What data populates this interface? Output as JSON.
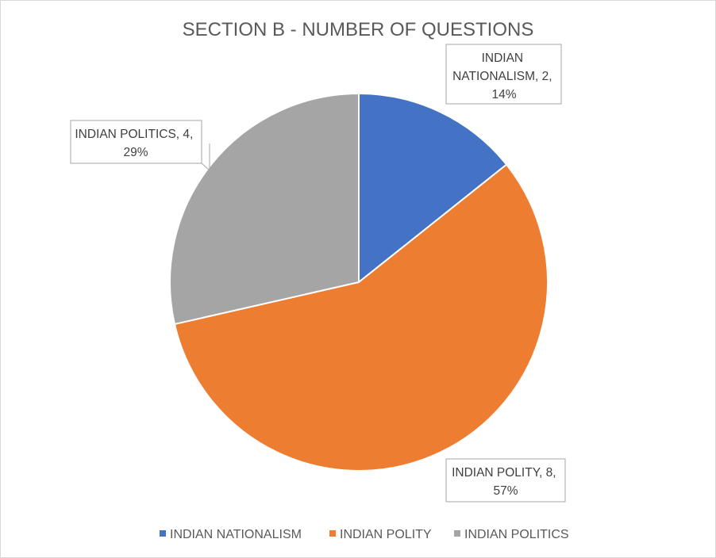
{
  "chart_data": {
    "type": "pie",
    "title": "SECTION B - NUMBER OF QUESTIONS",
    "categories": [
      "INDIAN NATIONALISM",
      "INDIAN POLITY",
      "INDIAN POLITICS"
    ],
    "values": [
      2,
      8,
      4
    ],
    "percent_labels": [
      "14%",
      "57%",
      "29%"
    ],
    "data_labels": [
      [
        "INDIAN",
        "NATIONALISM, 2,",
        "14%"
      ],
      [
        "INDIAN POLITY, 8,",
        "57%"
      ],
      [
        "INDIAN POLITICS, 4,",
        "29%"
      ]
    ],
    "colors": [
      "#4472c4",
      "#ed7d31",
      "#a5a5a5"
    ],
    "legend": {
      "position": "bottom",
      "items": [
        "INDIAN NATIONALISM",
        "INDIAN POLITY",
        "INDIAN POLITICS"
      ]
    }
  }
}
